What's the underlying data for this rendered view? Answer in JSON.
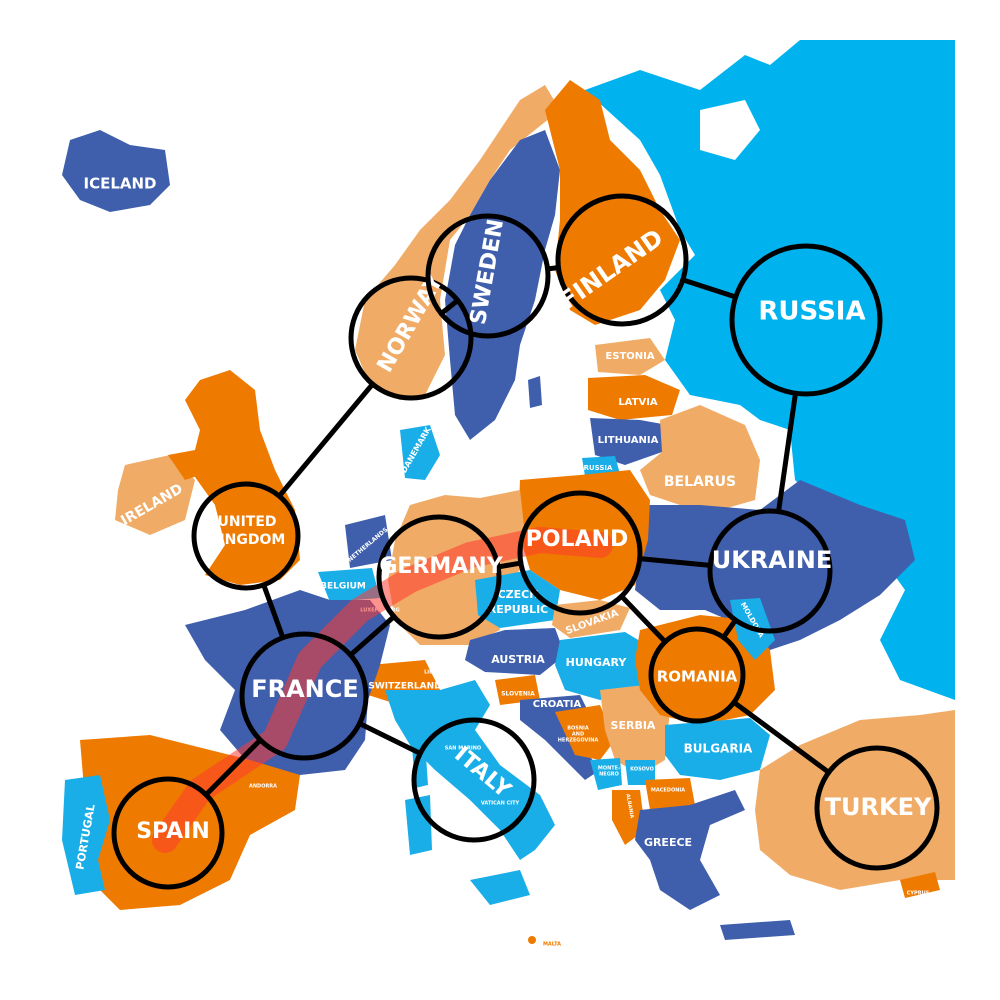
{
  "colors": {
    "sea": "#ffffff",
    "russia": "#00b3ef",
    "orange": "#ef7a00",
    "peach": "#f0ac66",
    "blue": "#3f5fad",
    "cyan": "#1aaee8",
    "edge": "#000000",
    "route": "#ff3b2f"
  },
  "country_labels": {
    "iceland": "ICELAND",
    "ireland": "IRELAND",
    "estonia": "ESTONIA",
    "latvia": "LATVIA",
    "lithuania": "LITHUANIA",
    "russia_kaliningrad": "RUSSIA",
    "belarus": "BELARUS",
    "denmark": "DANEMARK",
    "netherlands": "NETHERLANDS",
    "belgium": "BELGIUM",
    "luxembourg": "LUXEMBOURG",
    "czech": "CZECH REPUBLIC",
    "slovakia": "SLOVAKIA",
    "austria": "AUSTRIA",
    "hungary": "HUNGARY",
    "switzerland": "SWITZERLAND",
    "liechtenstein": "LIECHTENSTEIN",
    "slovenia": "SLOVENIA",
    "croatia": "CROATIA",
    "bosnia": "BOSNIA AND HERZEGOVINA",
    "serbia": "SERBIA",
    "montenegro": "MONTE-NEGRO",
    "kosovo": "KOSOVO",
    "macedonia": "MACEDONIA",
    "albania": "ALBANIA",
    "bulgaria": "BULGARIA",
    "greece": "GREECE",
    "moldova": "MOLDOVA",
    "portugal": "PORTUGAL",
    "andorra": "ANDORRA",
    "monaco": "MONACO",
    "san_marino": "SAN MARINO",
    "vatican": "VATICAN CITY",
    "malta": "MALTA",
    "cyprus": "CYPRUS"
  },
  "nodes": [
    {
      "id": "norway",
      "label": "NORWAY"
    },
    {
      "id": "sweden",
      "label": "SWEDEN"
    },
    {
      "id": "finland",
      "label": "FINLAND"
    },
    {
      "id": "russia",
      "label": "RUSSIA"
    },
    {
      "id": "uk",
      "label_line1": "UNITED",
      "label_line2": "KINGDOM"
    },
    {
      "id": "germany",
      "label": "GERMANY"
    },
    {
      "id": "poland",
      "label": "POLAND"
    },
    {
      "id": "ukraine",
      "label": "UKRAINE"
    },
    {
      "id": "france",
      "label": "FRANCE"
    },
    {
      "id": "romania",
      "label": "ROMANIA"
    },
    {
      "id": "italy",
      "label": "ITALY"
    },
    {
      "id": "spain",
      "label": "SPAIN"
    },
    {
      "id": "turkey",
      "label": "TURKEY"
    }
  ],
  "edges": [
    [
      "norway",
      "sweden"
    ],
    [
      "sweden",
      "finland"
    ],
    [
      "finland",
      "russia"
    ],
    [
      "russia",
      "ukraine"
    ],
    [
      "norway",
      "uk"
    ],
    [
      "uk",
      "france"
    ],
    [
      "france",
      "germany"
    ],
    [
      "germany",
      "poland"
    ],
    [
      "poland",
      "ukraine"
    ],
    [
      "poland",
      "romania"
    ],
    [
      "ukraine",
      "romania"
    ],
    [
      "romania",
      "turkey"
    ],
    [
      "france",
      "italy"
    ],
    [
      "france",
      "spain"
    ]
  ],
  "highlighted_route": [
    "spain",
    "france",
    "germany",
    "poland"
  ]
}
